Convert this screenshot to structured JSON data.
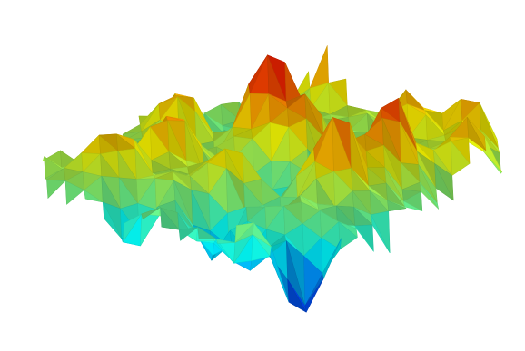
{
  "chart_data": {
    "type": "surface",
    "grid": false,
    "axes_visible": false,
    "colormap": "jet",
    "colormap_stops": [
      "#00008f",
      "#0000ff",
      "#0080ff",
      "#00ffff",
      "#80ff80",
      "#ffff00",
      "#ff8000",
      "#ff0000",
      "#800000"
    ],
    "shading": "faceted",
    "z_range": [
      -1,
      1
    ],
    "peaks": [
      {
        "x": 0.38,
        "y": -0.98,
        "z": 1.0
      },
      {
        "x": 0.02,
        "y": -0.35,
        "z": 0.8
      },
      {
        "x": -0.45,
        "y": -0.05,
        "z": 0.6
      },
      {
        "x": 0.16,
        "y": -0.12,
        "z": 0.55
      },
      {
        "x": 0.5,
        "y": 0.25,
        "z": 0.65
      },
      {
        "x": 0.82,
        "y": 0.18,
        "z": 0.5
      },
      {
        "x": -0.72,
        "y": 0.1,
        "z": 0.45
      },
      {
        "x": 0.24,
        "y": 0.42,
        "z": 0.6
      },
      {
        "x": -0.18,
        "y": 0.3,
        "z": 0.45
      },
      {
        "x": 0.62,
        "y": -0.35,
        "z": 0.45
      },
      {
        "x": -0.38,
        "y": -0.52,
        "z": 0.4
      },
      {
        "x": 0.9,
        "y": -0.2,
        "z": 0.3
      }
    ],
    "valleys": [
      {
        "x": 0.06,
        "y": 0.98,
        "z": -0.85
      },
      {
        "x": -0.16,
        "y": 0.78,
        "z": -0.6
      },
      {
        "x": 0.52,
        "y": 0.88,
        "z": -0.5
      },
      {
        "x": 0.88,
        "y": 0.6,
        "z": -0.6
      },
      {
        "x": -0.32,
        "y": 0.55,
        "z": -0.4
      },
      {
        "x": -0.66,
        "y": 0.42,
        "z": -0.45
      },
      {
        "x": 0.3,
        "y": 0.08,
        "z": -0.35
      },
      {
        "x": -0.05,
        "y": 0.05,
        "z": -0.3
      }
    ]
  }
}
